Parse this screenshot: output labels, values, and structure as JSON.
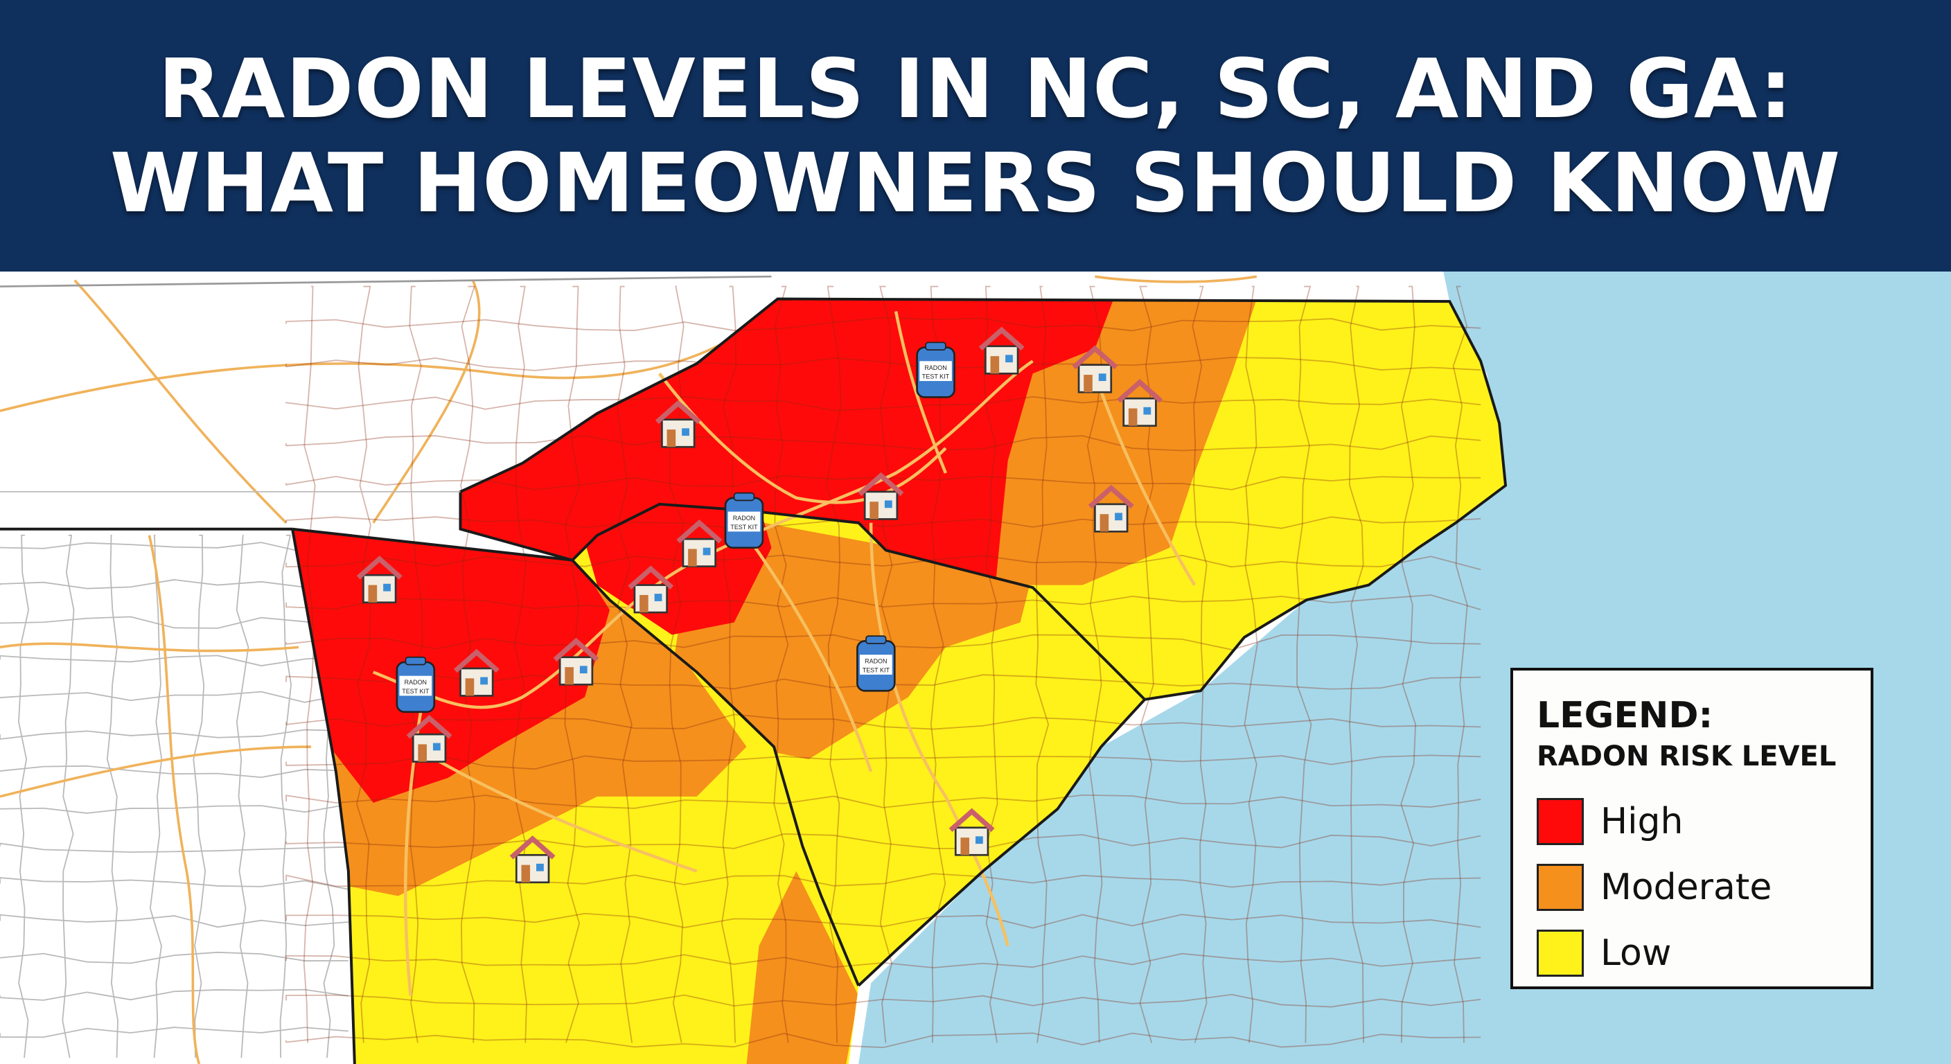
{
  "header": {
    "title_line_1": "RADON LEVELS IN NC, SC, AND GA:",
    "title_line_2": "WHAT HOMEOWNERS SHOULD KNOW"
  },
  "map": {
    "colors": {
      "ocean": "#a6d8ea",
      "land_outside": "#ffffff",
      "roads": "#f0b25a",
      "county_lines": "#8a2a10",
      "state_borders": "#1a1a1a"
    },
    "marker_types": {
      "house": "house-icon",
      "test_kit": "radon-test-kit-icon"
    },
    "test_kit_label": "RADON TEST KIT"
  },
  "legend": {
    "title": "LEGEND:",
    "subtitle": "RADON RISK LEVEL",
    "items": [
      {
        "label": "High",
        "color": "#ff0a0a"
      },
      {
        "label": "Moderate",
        "color": "#f5901c"
      },
      {
        "label": "Low",
        "color": "#fff21a"
      }
    ]
  }
}
